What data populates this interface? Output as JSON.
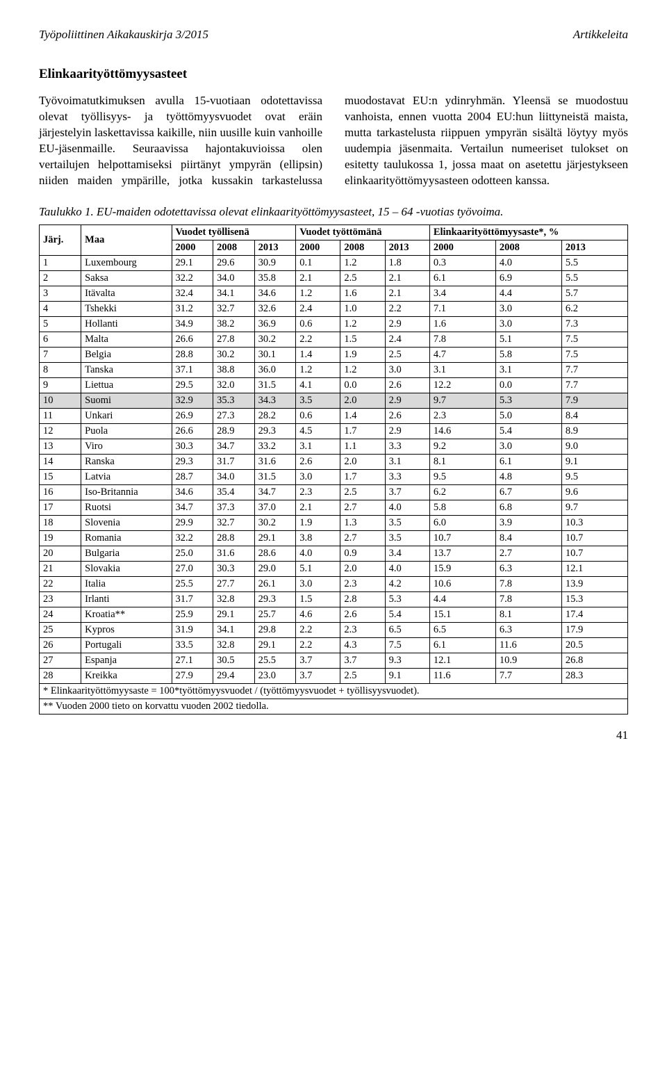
{
  "header": {
    "left": "Työpoliittinen Aikakauskirja 3/2015",
    "right": "Artikkeleita"
  },
  "section_heading": "Elinkaarityöttömyysasteet",
  "body_text": "Työvoimatutkimuksen avulla 15-vuotiaan odotettavissa olevat työllisyys- ja työttömyysvuodet ovat eräin järjestelyin laskettavissa kaikille, niin uusille kuin vanhoille EU-jäsenmaille. Seuraavissa hajontakuvioissa olen vertailujen helpottamiseksi piirtänyt ympyrän (ellipsin) niiden maiden ympärille, jotka kussakin tarkastelussa muodostavat EU:n ydinryhmän. Yleensä se muodostuu vanhoista, ennen vuotta 2004 EU:hun liittyneistä maista, mutta tarkastelusta riippuen ympyrän sisältä löytyy myös uudempia jäsenmaita. Vertailun numeeriset tulokset on esitetty taulukossa 1, jossa maat on asetettu järjestykseen elinkaarityöttömyysasteen odotteen kanssa.",
  "table_caption": "Taulukko 1. EU-maiden odotettavissa olevat elinkaarityöttömyysasteet, 15 – 64 -vuotias työvoima.",
  "table": {
    "header_row1": [
      "Järj.",
      "Maa",
      "Vuodet työllisenä",
      "Vuodet työttömänä",
      "Elinkaarityöttömyysaste*, %"
    ],
    "header_row2": [
      "",
      "",
      "2000",
      "2008",
      "2013",
      "2000",
      "2008",
      "2013",
      "2000",
      "2008",
      "2013"
    ],
    "rows": [
      {
        "n": "1",
        "c": "Luxembourg",
        "v": [
          "29.1",
          "29.6",
          "30.9",
          "0.1",
          "1.2",
          "1.8",
          "0.3",
          "4.0",
          "5.5"
        ],
        "hl": false
      },
      {
        "n": "2",
        "c": "Saksa",
        "v": [
          "32.2",
          "34.0",
          "35.8",
          "2.1",
          "2.5",
          "2.1",
          "6.1",
          "6.9",
          "5.5"
        ],
        "hl": false
      },
      {
        "n": "3",
        "c": "Itävalta",
        "v": [
          "32.4",
          "34.1",
          "34.6",
          "1.2",
          "1.6",
          "2.1",
          "3.4",
          "4.4",
          "5.7"
        ],
        "hl": false
      },
      {
        "n": "4",
        "c": "Tshekki",
        "v": [
          "31.2",
          "32.7",
          "32.6",
          "2.4",
          "1.0",
          "2.2",
          "7.1",
          "3.0",
          "6.2"
        ],
        "hl": false
      },
      {
        "n": "5",
        "c": "Hollanti",
        "v": [
          "34.9",
          "38.2",
          "36.9",
          "0.6",
          "1.2",
          "2.9",
          "1.6",
          "3.0",
          "7.3"
        ],
        "hl": false
      },
      {
        "n": "6",
        "c": "Malta",
        "v": [
          "26.6",
          "27.8",
          "30.2",
          "2.2",
          "1.5",
          "2.4",
          "7.8",
          "5.1",
          "7.5"
        ],
        "hl": false
      },
      {
        "n": "7",
        "c": "Belgia",
        "v": [
          "28.8",
          "30.2",
          "30.1",
          "1.4",
          "1.9",
          "2.5",
          "4.7",
          "5.8",
          "7.5"
        ],
        "hl": false
      },
      {
        "n": "8",
        "c": "Tanska",
        "v": [
          "37.1",
          "38.8",
          "36.0",
          "1.2",
          "1.2",
          "3.0",
          "3.1",
          "3.1",
          "7.7"
        ],
        "hl": false
      },
      {
        "n": "9",
        "c": "Liettua",
        "v": [
          "29.5",
          "32.0",
          "31.5",
          "4.1",
          "0.0",
          "2.6",
          "12.2",
          "0.0",
          "7.7"
        ],
        "hl": false
      },
      {
        "n": "10",
        "c": "Suomi",
        "v": [
          "32.9",
          "35.3",
          "34.3",
          "3.5",
          "2.0",
          "2.9",
          "9.7",
          "5.3",
          "7.9"
        ],
        "hl": true
      },
      {
        "n": "11",
        "c": "Unkari",
        "v": [
          "26.9",
          "27.3",
          "28.2",
          "0.6",
          "1.4",
          "2.6",
          "2.3",
          "5.0",
          "8.4"
        ],
        "hl": false
      },
      {
        "n": "12",
        "c": "Puola",
        "v": [
          "26.6",
          "28.9",
          "29.3",
          "4.5",
          "1.7",
          "2.9",
          "14.6",
          "5.4",
          "8.9"
        ],
        "hl": false
      },
      {
        "n": "13",
        "c": "Viro",
        "v": [
          "30.3",
          "34.7",
          "33.2",
          "3.1",
          "1.1",
          "3.3",
          "9.2",
          "3.0",
          "9.0"
        ],
        "hl": false
      },
      {
        "n": "14",
        "c": "Ranska",
        "v": [
          "29.3",
          "31.7",
          "31.6",
          "2.6",
          "2.0",
          "3.1",
          "8.1",
          "6.1",
          "9.1"
        ],
        "hl": false
      },
      {
        "n": "15",
        "c": "Latvia",
        "v": [
          "28.7",
          "34.0",
          "31.5",
          "3.0",
          "1.7",
          "3.3",
          "9.5",
          "4.8",
          "9.5"
        ],
        "hl": false
      },
      {
        "n": "16",
        "c": "Iso-Britannia",
        "v": [
          "34.6",
          "35.4",
          "34.7",
          "2.3",
          "2.5",
          "3.7",
          "6.2",
          "6.7",
          "9.6"
        ],
        "hl": false
      },
      {
        "n": "17",
        "c": "Ruotsi",
        "v": [
          "34.7",
          "37.3",
          "37.0",
          "2.1",
          "2.7",
          "4.0",
          "5.8",
          "6.8",
          "9.7"
        ],
        "hl": false
      },
      {
        "n": "18",
        "c": "Slovenia",
        "v": [
          "29.9",
          "32.7",
          "30.2",
          "1.9",
          "1.3",
          "3.5",
          "6.0",
          "3.9",
          "10.3"
        ],
        "hl": false
      },
      {
        "n": "19",
        "c": "Romania",
        "v": [
          "32.2",
          "28.8",
          "29.1",
          "3.8",
          "2.7",
          "3.5",
          "10.7",
          "8.4",
          "10.7"
        ],
        "hl": false
      },
      {
        "n": "20",
        "c": "Bulgaria",
        "v": [
          "25.0",
          "31.6",
          "28.6",
          "4.0",
          "0.9",
          "3.4",
          "13.7",
          "2.7",
          "10.7"
        ],
        "hl": false
      },
      {
        "n": "21",
        "c": "Slovakia",
        "v": [
          "27.0",
          "30.3",
          "29.0",
          "5.1",
          "2.0",
          "4.0",
          "15.9",
          "6.3",
          "12.1"
        ],
        "hl": false
      },
      {
        "n": "22",
        "c": "Italia",
        "v": [
          "25.5",
          "27.7",
          "26.1",
          "3.0",
          "2.3",
          "4.2",
          "10.6",
          "7.8",
          "13.9"
        ],
        "hl": false
      },
      {
        "n": "23",
        "c": "Irlanti",
        "v": [
          "31.7",
          "32.8",
          "29.3",
          "1.5",
          "2.8",
          "5.3",
          "4.4",
          "7.8",
          "15.3"
        ],
        "hl": false
      },
      {
        "n": "24",
        "c": "Kroatia**",
        "v": [
          "25.9",
          "29.1",
          "25.7",
          "4.6",
          "2.6",
          "5.4",
          "15.1",
          "8.1",
          "17.4"
        ],
        "hl": false
      },
      {
        "n": "25",
        "c": "Kypros",
        "v": [
          "31.9",
          "34.1",
          "29.8",
          "2.2",
          "2.3",
          "6.5",
          "6.5",
          "6.3",
          "17.9"
        ],
        "hl": false
      },
      {
        "n": "26",
        "c": "Portugali",
        "v": [
          "33.5",
          "32.8",
          "29.1",
          "2.2",
          "4.3",
          "7.5",
          "6.1",
          "11.6",
          "20.5"
        ],
        "hl": false
      },
      {
        "n": "27",
        "c": "Espanja",
        "v": [
          "27.1",
          "30.5",
          "25.5",
          "3.7",
          "3.7",
          "9.3",
          "12.1",
          "10.9",
          "26.8"
        ],
        "hl": false
      },
      {
        "n": "28",
        "c": "Kreikka",
        "v": [
          "27.9",
          "29.4",
          "23.0",
          "3.7",
          "2.5",
          "9.1",
          "11.6",
          "7.7",
          "28.3"
        ],
        "hl": false
      }
    ],
    "footnote1": "* Elinkaarityöttömyysaste = 100*työttömyysvuodet / (työttömyysvuodet + työllisyysvuodet).",
    "footnote2": "** Vuoden 2000 tieto on korvattu vuoden 2002 tiedolla."
  },
  "page_number": "41"
}
